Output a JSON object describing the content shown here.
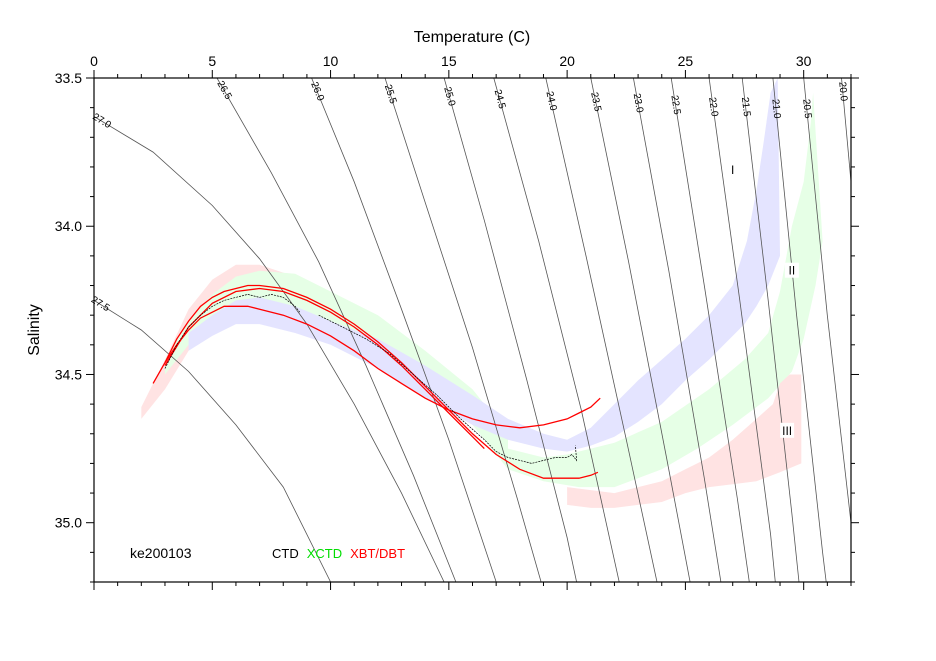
{
  "chart_data": {
    "type": "line",
    "title": "",
    "xlabel": "Temperature (C)",
    "ylabel": "Salinity",
    "xlim": [
      0,
      32
    ],
    "ylim": [
      35.2,
      33.5
    ],
    "x_axis_position": "top",
    "y_axis_inverted": true,
    "x_ticks": [
      0,
      5,
      10,
      15,
      20,
      25,
      30
    ],
    "x_tick_labels": [
      "0",
      "5",
      "10",
      "15",
      "20",
      "25",
      "30"
    ],
    "y_ticks": [
      33.5,
      34.0,
      34.5,
      35.0
    ],
    "y_tick_labels": [
      "33.5",
      "34.0",
      "34.5",
      "35.0"
    ],
    "grid": false,
    "station_label": "ke200103",
    "legend": {
      "placement": "bottom-left",
      "entries": [
        {
          "label": "CTD",
          "color": "#000000"
        },
        {
          "label": "XCTD",
          "color": "#00dd00"
        },
        {
          "label": "XBT/DBT",
          "color": "#ff0000"
        }
      ]
    },
    "isopycnals": [
      {
        "label": "27.5",
        "points": [
          [
            0,
            34.25
          ],
          [
            2.0,
            34.35
          ],
          [
            4.0,
            34.49
          ],
          [
            6.0,
            34.67
          ],
          [
            8.0,
            34.88
          ],
          [
            10.0,
            35.2
          ]
        ]
      },
      {
        "label": "27.0",
        "points": [
          [
            0,
            33.63
          ],
          [
            2.5,
            33.75
          ],
          [
            5.0,
            33.93
          ],
          [
            7.0,
            34.11
          ],
          [
            9.0,
            34.33
          ],
          [
            11.0,
            34.6
          ],
          [
            13.0,
            34.9
          ],
          [
            14.8,
            35.2
          ]
        ]
      },
      {
        "label": "26.5",
        "points": [
          [
            5.2,
            33.5
          ],
          [
            7.5,
            33.82
          ],
          [
            9.5,
            34.12
          ],
          [
            11.5,
            34.47
          ],
          [
            13.5,
            34.84
          ],
          [
            15.3,
            35.2
          ]
        ]
      },
      {
        "label": "26.0",
        "points": [
          [
            9.2,
            33.5
          ],
          [
            11.0,
            33.85
          ],
          [
            13.0,
            34.28
          ],
          [
            15.0,
            34.72
          ],
          [
            17.0,
            35.2
          ]
        ]
      },
      {
        "label": "25.5",
        "points": [
          [
            12.3,
            33.5
          ],
          [
            14.0,
            33.92
          ],
          [
            16.0,
            34.41
          ],
          [
            17.9,
            34.92
          ],
          [
            18.9,
            35.2
          ]
        ]
      },
      {
        "label": "25.0",
        "points": [
          [
            14.8,
            33.5
          ],
          [
            16.5,
            33.98
          ],
          [
            18.3,
            34.52
          ],
          [
            20.0,
            35.05
          ],
          [
            20.4,
            35.2
          ]
        ]
      },
      {
        "label": "24.5",
        "points": [
          [
            16.9,
            33.5
          ],
          [
            18.8,
            34.05
          ],
          [
            20.6,
            34.62
          ],
          [
            22.2,
            35.2
          ]
        ]
      },
      {
        "label": "24.0",
        "points": [
          [
            19.1,
            33.5
          ],
          [
            20.8,
            34.1
          ],
          [
            22.5,
            34.72
          ],
          [
            23.8,
            35.2
          ]
        ]
      },
      {
        "label": "23.5",
        "points": [
          [
            21.0,
            33.5
          ],
          [
            22.6,
            34.12
          ],
          [
            24.2,
            34.78
          ],
          [
            25.2,
            35.2
          ]
        ]
      },
      {
        "label": "23.0",
        "points": [
          [
            22.8,
            33.5
          ],
          [
            24.3,
            34.15
          ],
          [
            25.8,
            34.85
          ],
          [
            26.5,
            35.2
          ]
        ]
      },
      {
        "label": "22.5",
        "points": [
          [
            24.4,
            33.5
          ],
          [
            25.8,
            34.2
          ],
          [
            27.2,
            34.92
          ],
          [
            27.7,
            35.2
          ]
        ]
      },
      {
        "label": "22.0",
        "points": [
          [
            26.0,
            33.5
          ],
          [
            27.3,
            34.25
          ],
          [
            28.6,
            35.04
          ],
          [
            28.8,
            35.2
          ]
        ]
      },
      {
        "label": "21.5",
        "points": [
          [
            27.4,
            33.5
          ],
          [
            28.5,
            34.25
          ],
          [
            29.5,
            34.97
          ],
          [
            29.8,
            35.2
          ]
        ]
      },
      {
        "label": "21.0",
        "points": [
          [
            28.7,
            33.5
          ],
          [
            29.7,
            34.3
          ],
          [
            30.8,
            35.1
          ],
          [
            30.95,
            35.2
          ]
        ]
      },
      {
        "label": "20.5",
        "points": [
          [
            30.0,
            33.5
          ],
          [
            31.0,
            34.3
          ],
          [
            32.0,
            35.0
          ]
        ]
      },
      {
        "label": "20.0",
        "points": [
          [
            31.6,
            33.5
          ],
          [
            32.0,
            33.85
          ]
        ]
      }
    ],
    "envelopes": [
      {
        "name": "I",
        "color": "#e4e4ff",
        "label_at": [
          27.0,
          33.81
        ],
        "upper": [
          [
            19.0,
            34.7
          ],
          [
            20.0,
            34.72
          ],
          [
            21.0,
            34.68
          ],
          [
            22.0,
            34.6
          ],
          [
            23.0,
            34.52
          ],
          [
            24.0,
            34.45
          ],
          [
            25.0,
            34.38
          ],
          [
            26.0,
            34.3
          ],
          [
            27.0,
            34.2
          ],
          [
            27.6,
            34.05
          ],
          [
            28.0,
            33.88
          ],
          [
            28.3,
            33.72
          ],
          [
            28.6,
            33.55
          ],
          [
            28.9,
            33.5
          ]
        ],
        "lower": [
          [
            19.0,
            34.75
          ],
          [
            20.0,
            34.76
          ],
          [
            21.0,
            34.74
          ],
          [
            22.0,
            34.71
          ],
          [
            23.0,
            34.66
          ],
          [
            24.0,
            34.6
          ],
          [
            25.0,
            34.52
          ],
          [
            26.0,
            34.45
          ],
          [
            27.0,
            34.37
          ],
          [
            27.5,
            34.33
          ],
          [
            28.0,
            34.27
          ],
          [
            28.5,
            34.2
          ],
          [
            29.0,
            34.1
          ]
        ]
      },
      {
        "name": "II",
        "color": "#e6ffe6",
        "label_at": [
          29.5,
          34.15
        ],
        "upper": [
          [
            17.5,
            34.75
          ],
          [
            19.0,
            34.78
          ],
          [
            20.0,
            34.77
          ],
          [
            22.0,
            34.73
          ],
          [
            24.0,
            34.66
          ],
          [
            26.0,
            34.55
          ],
          [
            27.5,
            34.45
          ],
          [
            28.5,
            34.36
          ],
          [
            29.0,
            34.22
          ],
          [
            29.5,
            34.0
          ],
          [
            30.0,
            33.85
          ],
          [
            30.3,
            33.65
          ],
          [
            30.4,
            33.55
          ]
        ],
        "lower": [
          [
            17.5,
            34.82
          ],
          [
            19.0,
            34.86
          ],
          [
            20.5,
            34.88
          ],
          [
            22.0,
            34.88
          ],
          [
            24.0,
            34.82
          ],
          [
            25.5,
            34.75
          ],
          [
            27.0,
            34.67
          ],
          [
            28.5,
            34.58
          ],
          [
            29.5,
            34.49
          ],
          [
            30.0,
            34.38
          ],
          [
            30.5,
            34.2
          ],
          [
            30.8,
            34.05
          ]
        ]
      },
      {
        "name": "III",
        "color": "#ffe3e3",
        "label_at": [
          29.3,
          34.69
        ],
        "upper": [
          [
            20.0,
            34.88
          ],
          [
            21.0,
            34.89
          ],
          [
            22.0,
            34.9
          ],
          [
            23.0,
            34.88
          ],
          [
            24.0,
            34.86
          ],
          [
            25.0,
            34.82
          ],
          [
            26.0,
            34.78
          ],
          [
            27.0,
            34.72
          ],
          [
            28.0,
            34.65
          ],
          [
            28.7,
            34.6
          ],
          [
            29.0,
            34.53
          ],
          [
            29.4,
            34.5
          ],
          [
            29.9,
            34.5
          ]
        ],
        "lower": [
          [
            20.0,
            34.94
          ],
          [
            21.0,
            34.95
          ],
          [
            22.0,
            34.95
          ],
          [
            23.0,
            34.94
          ],
          [
            24.0,
            34.93
          ],
          [
            25.0,
            34.9
          ],
          [
            26.0,
            34.88
          ],
          [
            27.0,
            34.87
          ],
          [
            28.0,
            34.86
          ],
          [
            29.0,
            34.83
          ],
          [
            29.9,
            34.8
          ]
        ]
      },
      {
        "name": "cold-pink",
        "color": "#ffe3e3",
        "upper": [
          [
            2.0,
            34.61
          ],
          [
            3.0,
            34.45
          ],
          [
            4.0,
            34.28
          ],
          [
            5.0,
            34.18
          ],
          [
            6.0,
            34.13
          ],
          [
            7.0,
            34.13
          ],
          [
            8.5,
            34.17
          ],
          [
            10.0,
            34.24
          ],
          [
            11.5,
            34.3
          ]
        ],
        "lower": [
          [
            2.0,
            34.65
          ],
          [
            3.0,
            34.55
          ],
          [
            4.0,
            34.42
          ],
          [
            5.0,
            34.3
          ],
          [
            6.0,
            34.25
          ],
          [
            7.0,
            34.26
          ],
          [
            8.5,
            34.3
          ],
          [
            10.0,
            34.35
          ],
          [
            11.5,
            34.38
          ]
        ]
      },
      {
        "name": "cold-green",
        "color": "#e6ffe6",
        "upper": [
          [
            3.0,
            34.45
          ],
          [
            4.0,
            34.32
          ],
          [
            5.0,
            34.23
          ],
          [
            6.0,
            34.17
          ],
          [
            7.0,
            34.15
          ],
          [
            8.5,
            34.16
          ],
          [
            10.0,
            34.22
          ],
          [
            12.0,
            34.3
          ],
          [
            14.0,
            34.42
          ],
          [
            16.0,
            34.55
          ],
          [
            17.5,
            34.7
          ]
        ],
        "lower": [
          [
            3.0,
            34.5
          ],
          [
            4.0,
            34.4
          ],
          [
            5.0,
            34.32
          ],
          [
            6.0,
            34.27
          ],
          [
            7.0,
            34.27
          ],
          [
            8.5,
            34.3
          ],
          [
            10.0,
            34.35
          ],
          [
            12.0,
            34.42
          ],
          [
            14.0,
            34.53
          ],
          [
            16.0,
            34.67
          ],
          [
            17.5,
            34.82
          ]
        ]
      },
      {
        "name": "cold-blue",
        "color": "#e4e4ff",
        "upper": [
          [
            4.0,
            34.36
          ],
          [
            5.0,
            34.3
          ],
          [
            6.0,
            34.25
          ],
          [
            7.0,
            34.24
          ],
          [
            8.5,
            34.27
          ],
          [
            10.0,
            34.32
          ],
          [
            12.0,
            34.38
          ],
          [
            14.0,
            34.47
          ],
          [
            16.0,
            34.57
          ],
          [
            17.5,
            34.65
          ],
          [
            19.0,
            34.7
          ]
        ],
        "lower": [
          [
            4.0,
            34.42
          ],
          [
            5.0,
            34.37
          ],
          [
            6.0,
            34.33
          ],
          [
            7.0,
            34.33
          ],
          [
            8.5,
            34.36
          ],
          [
            10.0,
            34.4
          ],
          [
            12.0,
            34.48
          ],
          [
            14.0,
            34.58
          ],
          [
            16.0,
            34.67
          ],
          [
            17.5,
            34.72
          ],
          [
            19.0,
            34.75
          ]
        ]
      }
    ],
    "series": [
      {
        "name": "XBT/DBT",
        "color": "#ff0000",
        "x": [
          2.5,
          3.0,
          3.5,
          4.0,
          4.5,
          5.0,
          5.5,
          6.0,
          6.5,
          7.0,
          8.0,
          9.0,
          10.0,
          11.0,
          12.0,
          13.0,
          14.0,
          15.0,
          16.0,
          17.0,
          18.0,
          19.0,
          20.0,
          20.5,
          21.0,
          21.4
        ],
        "y": [
          34.53,
          34.46,
          34.4,
          34.35,
          34.31,
          34.29,
          34.27,
          34.27,
          34.27,
          34.28,
          34.3,
          34.33,
          34.37,
          34.42,
          34.48,
          34.53,
          34.58,
          34.62,
          34.65,
          34.67,
          34.68,
          34.67,
          34.65,
          34.63,
          34.61,
          34.58
        ]
      },
      {
        "name": "XBT/DBT",
        "color": "#ff0000",
        "x": [
          3.0,
          3.5,
          4.0,
          4.5,
          5.0,
          5.5,
          6.0,
          6.5,
          7.0,
          8.0,
          9.0,
          10.0,
          11.0,
          12.0,
          13.0,
          14.0,
          15.0,
          16.0,
          17.0,
          18.0,
          19.0,
          20.0,
          20.5,
          21.0,
          21.3
        ],
        "y": [
          34.46,
          34.38,
          34.32,
          34.27,
          34.24,
          34.22,
          34.21,
          34.2,
          34.2,
          34.21,
          34.24,
          34.28,
          34.33,
          34.39,
          34.46,
          34.54,
          34.62,
          34.7,
          34.77,
          34.82,
          34.85,
          34.85,
          34.85,
          34.84,
          34.83
        ]
      },
      {
        "name": "XBT/DBT",
        "color": "#ff0000",
        "x": [
          3.0,
          4.0,
          5.0,
          6.0,
          7.0,
          8.0,
          9.0,
          10.0,
          11.0,
          12.0,
          13.0,
          14.0,
          15.0,
          16.0,
          16.5
        ],
        "y": [
          34.47,
          34.34,
          34.26,
          34.22,
          34.21,
          34.22,
          34.25,
          34.29,
          34.34,
          34.4,
          34.47,
          34.55,
          34.63,
          34.71,
          34.75
        ]
      },
      {
        "name": "CTD",
        "color": "#000000",
        "x": [
          3.0,
          3.5,
          4.0,
          4.5,
          5.0,
          5.5,
          6.0,
          6.5,
          7.0,
          7.5,
          8.0,
          8.5,
          8.7
        ],
        "y": [
          34.48,
          34.4,
          34.34,
          34.3,
          34.27,
          34.25,
          34.24,
          34.23,
          34.24,
          34.23,
          34.24,
          34.27,
          34.29
        ]
      },
      {
        "name": "CTD",
        "color": "#000000",
        "x": [
          9.5,
          10.5,
          11.5,
          12.5,
          13.5,
          14.5,
          15.5,
          16.5,
          17.0,
          17.5,
          18.0,
          18.5,
          19.0,
          19.5,
          20.0,
          20.2,
          20.4,
          20.35
        ],
        "y": [
          34.3,
          34.34,
          34.38,
          34.43,
          34.5,
          34.57,
          34.65,
          34.72,
          34.76,
          34.78,
          34.79,
          34.8,
          34.79,
          34.78,
          34.78,
          34.77,
          34.79,
          34.74
        ]
      }
    ]
  }
}
